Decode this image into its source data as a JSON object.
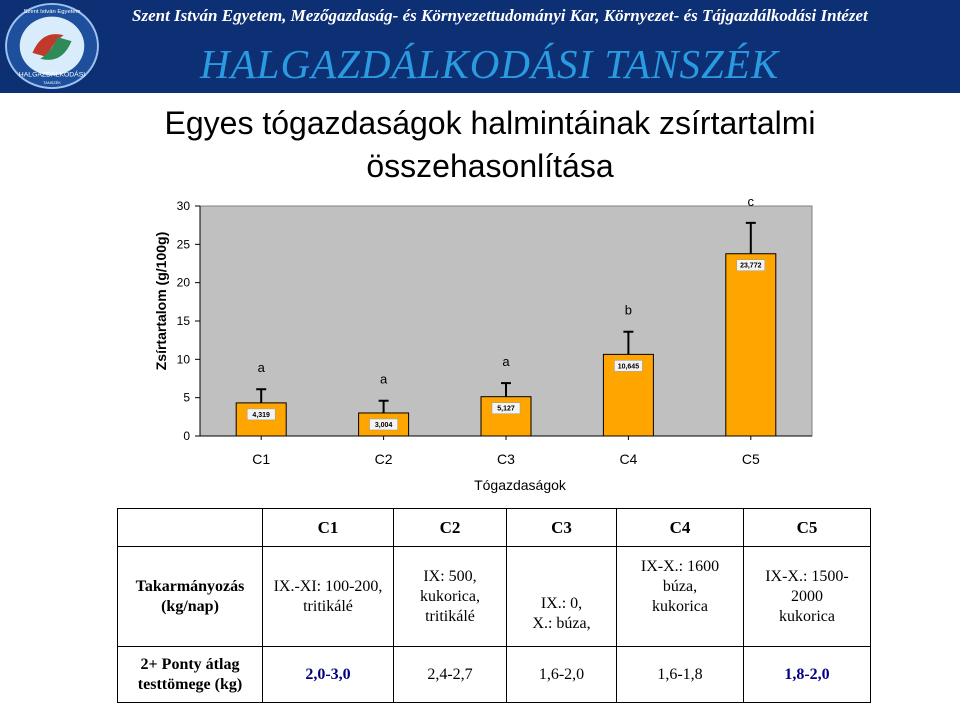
{
  "header": {
    "institution": "Szent István Egyetem, Mezőgazdaság- és Környezettudományi Kar, Környezet- és Tájgazdálkodási Intézet",
    "department": "HALGAZDÁLKODÁSI TANSZÉK",
    "logo_text": "HALGAZDÁLKODÁSI",
    "logo_ring_text": "Szent István Egyetem",
    "logo_bottom": "TANSZÉK"
  },
  "slide_title": "Egyes tógazdaságok halmintáinak zsírtartalmi összehasonlítása",
  "colors": {
    "header_bg": "#0d2f74",
    "dept_text": "#2a9be0",
    "bar_fill": "#ffa500",
    "plot_bg": "#c0c0c0"
  },
  "chart_data": {
    "type": "bar",
    "categories": [
      "C1",
      "C2",
      "C3",
      "C4",
      "C5"
    ],
    "values": [
      4.319,
      3.004,
      5.127,
      10.645,
      23.772
    ],
    "value_labels": [
      "4,319",
      "3,004",
      "5,127",
      "10,645",
      "23,772"
    ],
    "error_upper": [
      6.1,
      4.6,
      6.9,
      13.6,
      27.8
    ],
    "significance": [
      "a",
      "a",
      "a",
      "b",
      "c"
    ],
    "xlabel": "Tógazdaságok",
    "ylabel": "Zsírtartalom (g/100g)",
    "ylim": [
      0,
      30
    ],
    "yticks": [
      0,
      5,
      10,
      15,
      20,
      25,
      30
    ],
    "grid": false
  },
  "table": {
    "columns": [
      "C1",
      "C2",
      "C3",
      "C4",
      "C5"
    ],
    "row1_label_lines": [
      "Takarmányozás",
      "(kg/nap)"
    ],
    "row1": [
      [
        "IX.-XI: 100-200,",
        "tritikálé"
      ],
      [
        "IX: 500,",
        "kukorica,",
        "tritikálé"
      ],
      [
        "IX.: 0,",
        "X.: búza,"
      ],
      [
        "IX-X.: 1600",
        "búza,",
        "kukorica"
      ],
      [
        "IX-X.: 1500-",
        "2000",
        "kukorica"
      ]
    ],
    "row2_label_lines": [
      "2+ Ponty átlag",
      "testtömege (kg)"
    ],
    "row2": [
      "2,0-3,0",
      "2,4-2,7",
      "1,6-2,0",
      "1,6-1,8",
      "1,8-2,0"
    ]
  }
}
